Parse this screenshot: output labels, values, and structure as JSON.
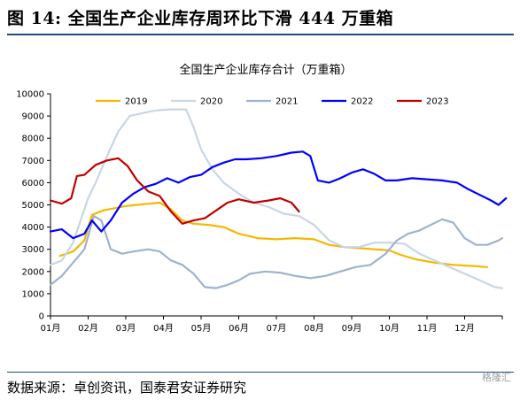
{
  "figure_title": "图 14:  全国生产企业库存周环比下滑 444 万重箱",
  "source": "数据来源：卓创资讯，国泰君安证券研究",
  "watermark": "格隆汇",
  "chart_data": {
    "type": "line",
    "title": "全国生产企业库存合计（万重箱）",
    "xlabel": "",
    "ylabel": "",
    "x_ticks": [
      "01月",
      "02月",
      "03月",
      "04月",
      "05月",
      "06月",
      "07月",
      "08月",
      "09月",
      "10月",
      "11月",
      "12月"
    ],
    "y_ticks": [
      0,
      1000,
      2000,
      3000,
      4000,
      5000,
      6000,
      7000,
      8000,
      9000,
      10000
    ],
    "ylim": [
      0,
      10000
    ],
    "xlim": [
      1,
      13
    ],
    "grid": false,
    "legend_position": "top",
    "series": [
      {
        "name": "2019",
        "color": "#f5b800",
        "points": [
          [
            1.25,
            2700
          ],
          [
            1.6,
            2900
          ],
          [
            1.9,
            3400
          ],
          [
            2.1,
            4550
          ],
          [
            2.4,
            4750
          ],
          [
            2.7,
            4850
          ],
          [
            3.0,
            4950
          ],
          [
            3.3,
            5000
          ],
          [
            3.6,
            5050
          ],
          [
            3.9,
            5100
          ],
          [
            4.2,
            4800
          ],
          [
            4.5,
            4300
          ],
          [
            4.8,
            4150
          ],
          [
            5.2,
            4100
          ],
          [
            5.6,
            4000
          ],
          [
            6.0,
            3700
          ],
          [
            6.5,
            3500
          ],
          [
            7.0,
            3450
          ],
          [
            7.5,
            3500
          ],
          [
            8.0,
            3450
          ],
          [
            8.4,
            3200
          ],
          [
            8.8,
            3100
          ],
          [
            9.2,
            3050
          ],
          [
            9.6,
            3000
          ],
          [
            10.0,
            2950
          ],
          [
            10.3,
            2750
          ],
          [
            10.7,
            2550
          ],
          [
            11.2,
            2400
          ],
          [
            11.7,
            2300
          ],
          [
            12.2,
            2250
          ],
          [
            12.6,
            2200
          ]
        ]
      },
      {
        "name": "2020",
        "color": "#c8d6e5",
        "points": [
          [
            1.0,
            2300
          ],
          [
            1.3,
            2500
          ],
          [
            1.6,
            3300
          ],
          [
            1.8,
            4300
          ],
          [
            2.0,
            5300
          ],
          [
            2.2,
            6000
          ],
          [
            2.5,
            7200
          ],
          [
            2.8,
            8300
          ],
          [
            3.1,
            9000
          ],
          [
            3.5,
            9150
          ],
          [
            3.8,
            9250
          ],
          [
            4.2,
            9300
          ],
          [
            4.6,
            9300
          ],
          [
            4.8,
            8500
          ],
          [
            5.0,
            7500
          ],
          [
            5.3,
            6600
          ],
          [
            5.6,
            6000
          ],
          [
            6.0,
            5500
          ],
          [
            6.4,
            5100
          ],
          [
            6.8,
            4900
          ],
          [
            7.2,
            4600
          ],
          [
            7.6,
            4500
          ],
          [
            8.0,
            4100
          ],
          [
            8.4,
            3400
          ],
          [
            8.8,
            3100
          ],
          [
            9.2,
            3100
          ],
          [
            9.6,
            3300
          ],
          [
            10.0,
            3300
          ],
          [
            10.4,
            3250
          ],
          [
            10.8,
            2800
          ],
          [
            11.2,
            2500
          ],
          [
            11.6,
            2200
          ],
          [
            12.0,
            1900
          ],
          [
            12.4,
            1600
          ],
          [
            12.8,
            1300
          ],
          [
            13.0,
            1250
          ]
        ]
      },
      {
        "name": "2021",
        "color": "#9db3ce",
        "points": [
          [
            1.0,
            1400
          ],
          [
            1.3,
            1800
          ],
          [
            1.6,
            2400
          ],
          [
            1.9,
            3000
          ],
          [
            2.15,
            4500
          ],
          [
            2.35,
            4300
          ],
          [
            2.6,
            3000
          ],
          [
            2.9,
            2800
          ],
          [
            3.2,
            2900
          ],
          [
            3.6,
            3000
          ],
          [
            3.9,
            2900
          ],
          [
            4.2,
            2500
          ],
          [
            4.5,
            2300
          ],
          [
            4.8,
            1900
          ],
          [
            5.1,
            1300
          ],
          [
            5.4,
            1250
          ],
          [
            5.7,
            1400
          ],
          [
            6.0,
            1600
          ],
          [
            6.3,
            1900
          ],
          [
            6.7,
            2000
          ],
          [
            7.1,
            1950
          ],
          [
            7.5,
            1800
          ],
          [
            7.9,
            1700
          ],
          [
            8.3,
            1800
          ],
          [
            8.7,
            2000
          ],
          [
            9.1,
            2200
          ],
          [
            9.5,
            2300
          ],
          [
            9.9,
            2800
          ],
          [
            10.2,
            3400
          ],
          [
            10.5,
            3700
          ],
          [
            10.8,
            3850
          ],
          [
            11.1,
            4100
          ],
          [
            11.4,
            4350
          ],
          [
            11.7,
            4200
          ],
          [
            12.0,
            3500
          ],
          [
            12.3,
            3200
          ],
          [
            12.6,
            3200
          ],
          [
            12.9,
            3400
          ],
          [
            13.0,
            3500
          ]
        ]
      },
      {
        "name": "2022",
        "color": "#0000ff",
        "points": [
          [
            1.0,
            3800
          ],
          [
            1.3,
            3900
          ],
          [
            1.6,
            3500
          ],
          [
            1.9,
            3700
          ],
          [
            2.1,
            4300
          ],
          [
            2.35,
            3800
          ],
          [
            2.6,
            4300
          ],
          [
            2.9,
            5100
          ],
          [
            3.2,
            5500
          ],
          [
            3.5,
            5800
          ],
          [
            3.8,
            5950
          ],
          [
            4.1,
            6200
          ],
          [
            4.4,
            6000
          ],
          [
            4.7,
            6250
          ],
          [
            5.0,
            6350
          ],
          [
            5.3,
            6700
          ],
          [
            5.6,
            6900
          ],
          [
            5.9,
            7050
          ],
          [
            6.2,
            7050
          ],
          [
            6.6,
            7100
          ],
          [
            7.0,
            7200
          ],
          [
            7.4,
            7350
          ],
          [
            7.7,
            7400
          ],
          [
            7.9,
            7200
          ],
          [
            8.1,
            6100
          ],
          [
            8.4,
            6000
          ],
          [
            8.7,
            6200
          ],
          [
            9.0,
            6450
          ],
          [
            9.3,
            6600
          ],
          [
            9.6,
            6400
          ],
          [
            9.9,
            6100
          ],
          [
            10.2,
            6100
          ],
          [
            10.6,
            6200
          ],
          [
            11.0,
            6150
          ],
          [
            11.4,
            6100
          ],
          [
            11.8,
            6000
          ],
          [
            12.1,
            5700
          ],
          [
            12.4,
            5450
          ],
          [
            12.7,
            5200
          ],
          [
            12.9,
            5000
          ],
          [
            13.1,
            5300
          ]
        ]
      },
      {
        "name": "2023",
        "color": "#c00000",
        "points": [
          [
            1.0,
            5200
          ],
          [
            1.3,
            5050
          ],
          [
            1.55,
            5300
          ],
          [
            1.7,
            6300
          ],
          [
            1.9,
            6350
          ],
          [
            2.2,
            6800
          ],
          [
            2.5,
            7000
          ],
          [
            2.8,
            7100
          ],
          [
            3.05,
            6750
          ],
          [
            3.3,
            6100
          ],
          [
            3.6,
            5600
          ],
          [
            3.9,
            5400
          ],
          [
            4.2,
            4700
          ],
          [
            4.5,
            4150
          ],
          [
            4.8,
            4300
          ],
          [
            5.1,
            4400
          ],
          [
            5.4,
            4750
          ],
          [
            5.7,
            5100
          ],
          [
            6.0,
            5250
          ],
          [
            6.4,
            5100
          ],
          [
            6.8,
            5200
          ],
          [
            7.1,
            5300
          ],
          [
            7.4,
            5100
          ],
          [
            7.6,
            4700
          ]
        ]
      }
    ]
  }
}
